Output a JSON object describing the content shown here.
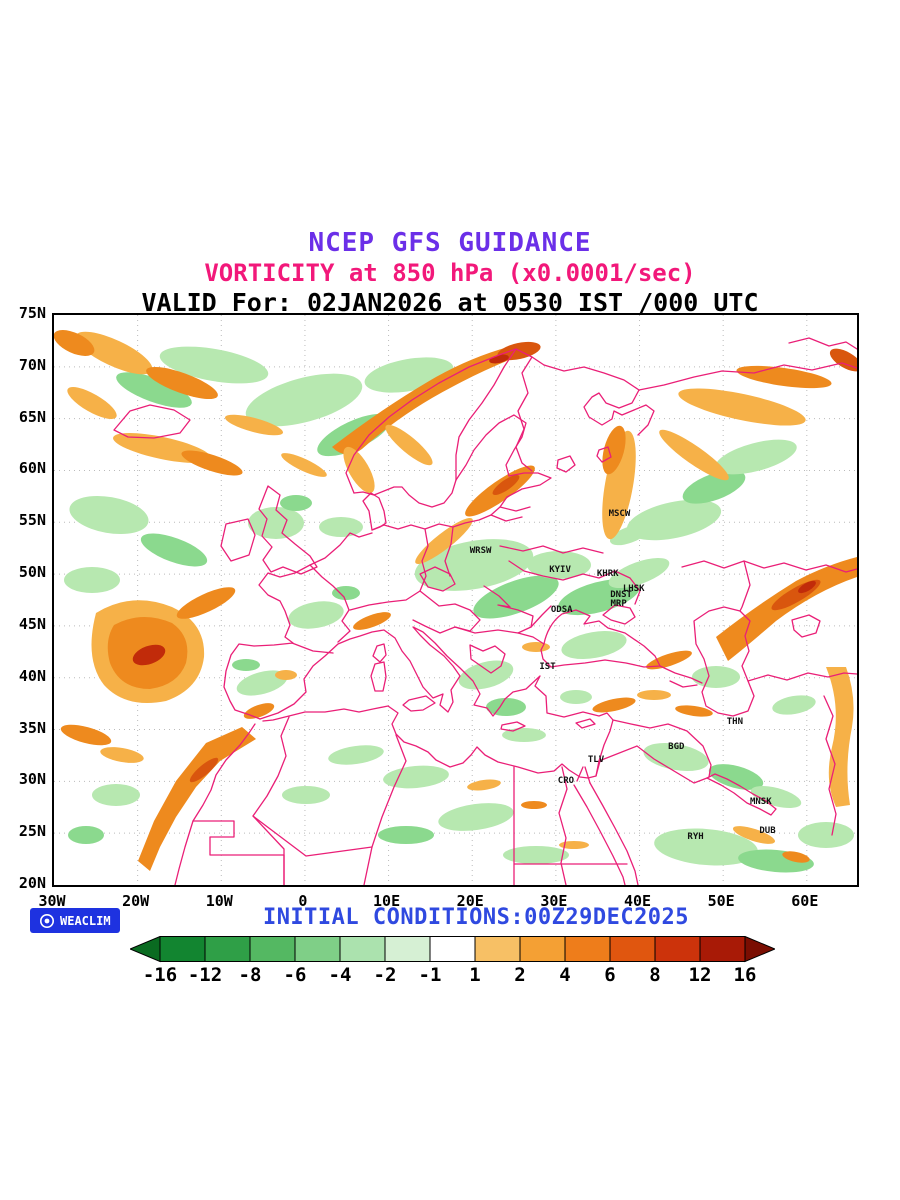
{
  "header": {
    "line1": "NCEP GFS GUIDANCE",
    "line2": "VORTICITY at 850 hPa (x0.0001/sec)",
    "line3": "VALID For: 02JAN2026 at 0530 IST /000 UTC"
  },
  "footer": {
    "initial_conditions": "INITIAL CONDITIONS:00Z29DEC2025",
    "logo_text": "WEACLIM"
  },
  "colors": {
    "title": "#6b2fe8",
    "subtitle": "#f2187a",
    "valid": "#000000",
    "coastline": "#ea1f77",
    "initial_conditions": "#2f49e0",
    "logo_bg": "#1e32e0",
    "grid": "#bbbbbb",
    "greens": [
      "#b7e8b0",
      "#8bd98e",
      "#5fc672"
    ],
    "oranges": [
      "#f6b148",
      "#ee8a1e",
      "#d9560e",
      "#c12b0a"
    ]
  },
  "chart_data": {
    "type": "heatmap",
    "title": "NCEP GFS GUIDANCE",
    "subtitle": "VORTICITY at 850 hPa (x0.0001/sec)",
    "valid_line": "VALID For: 02JAN2026 at 0530 IST /000 UTC",
    "initial_conditions": "INITIAL CONDITIONS:00Z29DEC2025",
    "variable": "Vorticity at 850 hPa",
    "units": "x0.0001/sec",
    "extent": {
      "lon_min": -30,
      "lon_max": 66,
      "lat_min": 20,
      "lat_max": 75
    },
    "x_axis": {
      "ticks": [
        {
          "label": "30W",
          "lon": -30
        },
        {
          "label": "20W",
          "lon": -20
        },
        {
          "label": "10W",
          "lon": -10
        },
        {
          "label": "0",
          "lon": 0
        },
        {
          "label": "10E",
          "lon": 10
        },
        {
          "label": "20E",
          "lon": 20
        },
        {
          "label": "30E",
          "lon": 30
        },
        {
          "label": "40E",
          "lon": 40
        },
        {
          "label": "50E",
          "lon": 50
        },
        {
          "label": "60E",
          "lon": 60
        }
      ]
    },
    "y_axis": {
      "ticks": [
        {
          "label": "75N",
          "lat": 75
        },
        {
          "label": "70N",
          "lat": 70
        },
        {
          "label": "65N",
          "lat": 65
        },
        {
          "label": "60N",
          "lat": 60
        },
        {
          "label": "55N",
          "lat": 55
        },
        {
          "label": "50N",
          "lat": 50
        },
        {
          "label": "45N",
          "lat": 45
        },
        {
          "label": "40N",
          "lat": 40
        },
        {
          "label": "35N",
          "lat": 35
        },
        {
          "label": "30N",
          "lat": 30
        },
        {
          "label": "25N",
          "lat": 25
        },
        {
          "label": "20N",
          "lat": 20
        }
      ]
    },
    "colorbar": {
      "levels": [
        "-16",
        "-12",
        "-8",
        "-6",
        "-4",
        "-2",
        "-1",
        "1",
        "2",
        "4",
        "6",
        "8",
        "12",
        "16"
      ],
      "colors": [
        "#0a6b21",
        "#128530",
        "#2f9f47",
        "#54b862",
        "#7fcf87",
        "#abe2ae",
        "#d6f0d4",
        "#ffffff",
        "#f7c065",
        "#f4a034",
        "#ee7d1b",
        "#e0560f",
        "#cc330b",
        "#a81a06",
        "#7a0e02"
      ]
    },
    "cities": [
      {
        "label": "MSCW",
        "lon": 37.6,
        "lat": 55.8
      },
      {
        "label": "WRSW",
        "lon": 21.0,
        "lat": 52.2
      },
      {
        "label": "KYIV",
        "lon": 30.5,
        "lat": 50.4
      },
      {
        "label": "KHRK",
        "lon": 36.2,
        "lat": 50.0
      },
      {
        "label": "LHSK",
        "lon": 39.3,
        "lat": 48.6
      },
      {
        "label": "DNST",
        "lon": 37.8,
        "lat": 48.0
      },
      {
        "label": "MRP",
        "lon": 37.5,
        "lat": 47.1
      },
      {
        "label": "ODSA",
        "lon": 30.7,
        "lat": 46.5
      },
      {
        "label": "IST",
        "lon": 29.0,
        "lat": 41.0
      },
      {
        "label": "THN",
        "lon": 51.4,
        "lat": 35.7
      },
      {
        "label": "BGD",
        "lon": 44.4,
        "lat": 33.3
      },
      {
        "label": "TLV",
        "lon": 34.8,
        "lat": 32.1
      },
      {
        "label": "CRO",
        "lon": 31.2,
        "lat": 30.0
      },
      {
        "label": "RYH",
        "lon": 46.7,
        "lat": 24.6
      },
      {
        "label": "MNSK",
        "lon": 54.5,
        "lat": 28.0
      },
      {
        "label": "DUB",
        "lon": 55.3,
        "lat": 25.2
      }
    ]
  }
}
